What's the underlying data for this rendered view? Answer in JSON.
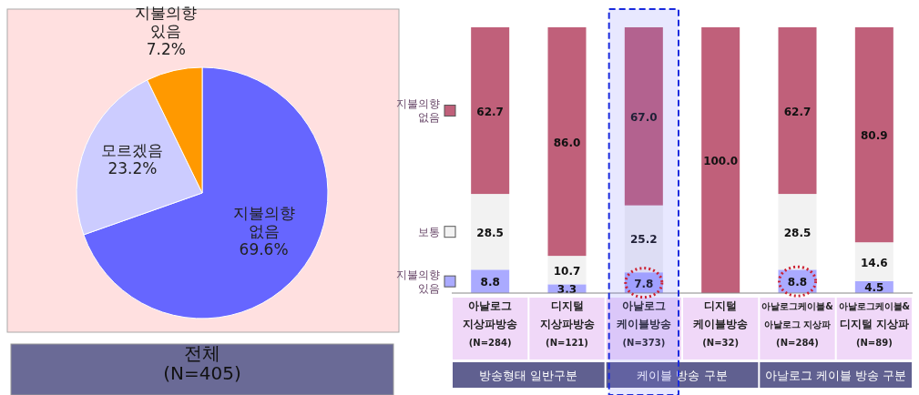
{
  "chart_data": [
    {
      "type": "pie",
      "categories": [
        "지불의향\n없음",
        "모르겠음",
        "지불의향\n있음"
      ],
      "values": [
        69.6,
        23.2,
        7.2
      ],
      "colors": [
        "#6666ff",
        "#ccccff",
        "#ff9900"
      ],
      "value_labels": [
        "69.6%",
        "23.2%",
        "7.2%"
      ],
      "annotations": [
        "전체\n(N=405)"
      ]
    },
    {
      "type": "bar",
      "stacked": true,
      "categories": [
        "아날로그\n지상파방송\n(N=284)",
        "디지털\n지상파방송\n(N=121)",
        "아날로그\n케이블방송\n(N=373)",
        "디지털\n케이블방송\n(N=32)",
        "아날로그케이블&\n아날로그 지상파\n(N=284)",
        "아날로그케이블&\n디지털 지상파\n(N=89)"
      ],
      "series": [
        {
          "name": "지불의향\n있음",
          "color": "#aaaaff",
          "values": [
            8.8,
            3.3,
            7.8,
            0,
            8.8,
            4.5
          ],
          "value_labels": [
            "8.8",
            "3.3",
            "7.8",
            null,
            "8.8",
            "4.5"
          ]
        },
        {
          "name": "보통",
          "color": "#f2f2f2",
          "values": [
            28.5,
            10.7,
            25.2,
            0,
            28.5,
            14.6
          ],
          "value_labels": [
            "28.5",
            "10.7",
            "25.2",
            null,
            "28.5",
            "14.6"
          ]
        },
        {
          "name": "지불의향\n없음",
          "color": "#c0607a",
          "values": [
            62.7,
            86.0,
            67.0,
            100.0,
            62.7,
            80.9
          ],
          "value_labels": [
            "62.7",
            "86.0",
            "67.0",
            "100.0",
            "62.7",
            "80.9"
          ]
        }
      ],
      "annotations": [
        "방송형태 일반구분",
        "케이블 방송 구분",
        "아날로그 케이블 방송 구분"
      ],
      "legend": "left"
    }
  ]
}
